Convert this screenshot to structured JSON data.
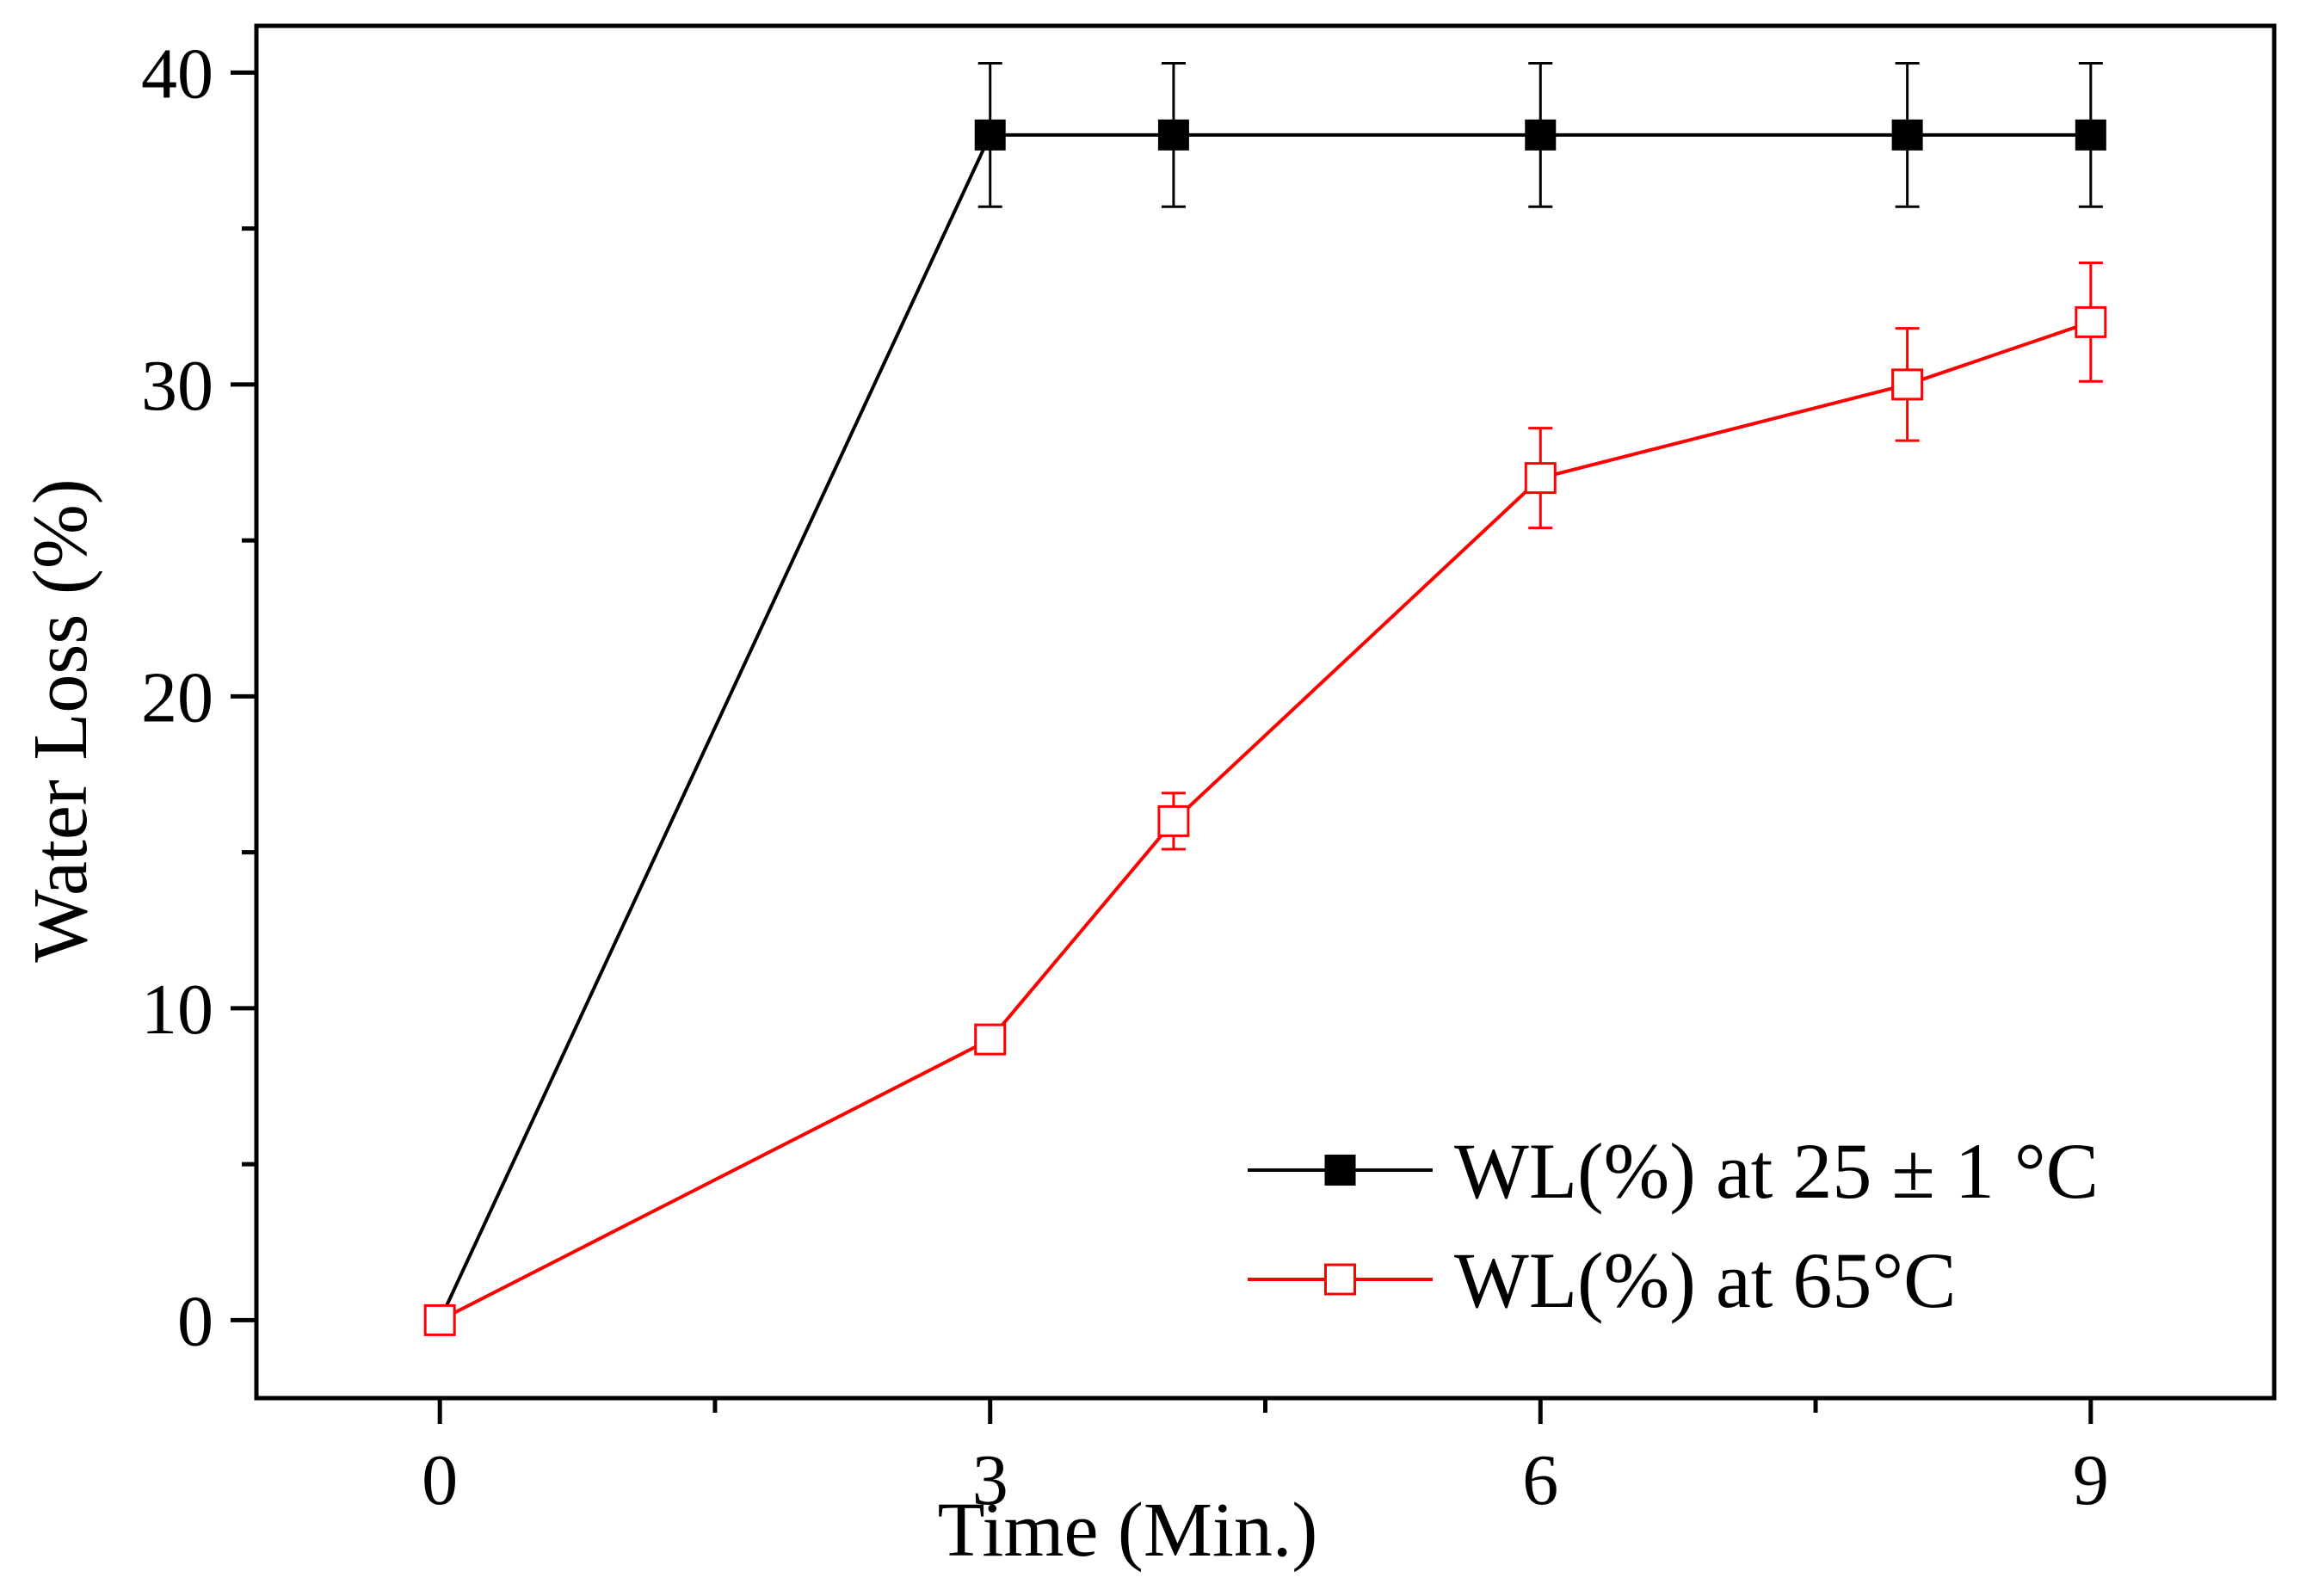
{
  "chart_data": {
    "type": "line",
    "title": "",
    "xlabel": "Time (Min.)",
    "ylabel": "Water Loss (%)",
    "xlim": [
      -1.0,
      10.0
    ],
    "ylim": [
      -2.5,
      41.5
    ],
    "x_ticks": [
      0,
      3,
      6,
      9
    ],
    "x_tick_labels": [
      "0",
      "3",
      "6",
      "9"
    ],
    "x_minor_ticks": [
      1.5,
      4.5,
      7.5
    ],
    "y_ticks": [
      0,
      10,
      20,
      30,
      40
    ],
    "y_tick_labels": [
      "0",
      "10",
      "20",
      "30",
      "40"
    ],
    "y_minor_ticks": [
      5,
      15,
      25,
      35
    ],
    "grid": false,
    "legend_position": "bottom-right",
    "series": [
      {
        "name": "WL(%) at 25 ± 1 °C",
        "color": "#000000",
        "marker": "filled-square",
        "x": [
          0,
          3,
          4,
          6,
          8,
          9
        ],
        "y": [
          0,
          38,
          38,
          38,
          38,
          38
        ],
        "error": [
          0,
          2.3,
          2.3,
          2.3,
          2.3,
          2.3
        ]
      },
      {
        "name": "WL(%) at 65°C",
        "color": "#ff0000",
        "marker": "open-square",
        "x": [
          0,
          3,
          4,
          6,
          8,
          9
        ],
        "y": [
          0,
          9,
          16,
          27,
          30,
          32
        ],
        "error": [
          0,
          0,
          0.9,
          1.6,
          1.8,
          1.9
        ]
      }
    ]
  }
}
